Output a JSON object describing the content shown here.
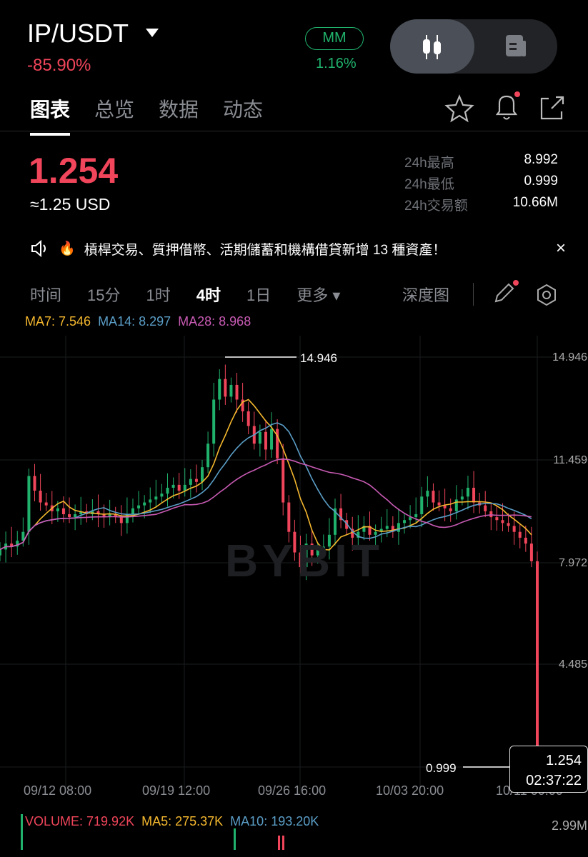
{
  "header": {
    "pair": "IP/USDT",
    "change": "-85.90%",
    "mm_label": "MM",
    "mm_value": "1.16%"
  },
  "tabs": [
    {
      "label": "图表",
      "active": true
    },
    {
      "label": "总览"
    },
    {
      "label": "数据"
    },
    {
      "label": "动态"
    }
  ],
  "ticker": {
    "price": "1.254",
    "usd": "≈1.25 USD",
    "stats": [
      {
        "k": "24h最高",
        "v": "8.992"
      },
      {
        "k": "24h最低",
        "v": "0.999"
      },
      {
        "k": "24h交易额",
        "v": "10.66M"
      }
    ]
  },
  "notice": {
    "text": "槓桿交易、質押借幣、活期儲蓄和機構借貸新增 13 種資產！",
    "close": "×"
  },
  "timeframes": [
    {
      "label": "时间"
    },
    {
      "label": "15分"
    },
    {
      "label": "1时"
    },
    {
      "label": "4时",
      "active": true
    },
    {
      "label": "1日"
    },
    {
      "label": "更多 ▾"
    }
  ],
  "depth": "深度图",
  "ma_legend": {
    "ma7": "MA7: 7.546",
    "ma14": "MA14: 8.297",
    "ma28": "MA28: 8.968"
  },
  "colors": {
    "up": "#20b26c",
    "down": "#f0455a",
    "ma7": "#f5b82e",
    "ma14": "#5b9ec7",
    "ma28": "#c95bb5"
  },
  "watermark": "BYBIT",
  "chart_data": {
    "type": "candlestick",
    "y_ticks": [
      "14.946",
      "11.459",
      "7.972",
      "4.485"
    ],
    "ylim": [
      0.999,
      14.946
    ],
    "x_ticks": [
      "09/12 08:00",
      "09/19 12:00",
      "09/26 16:00",
      "10/03 20:00",
      "10/11 00:00"
    ],
    "high_label": "14.946",
    "low_label": "0.999",
    "last": {
      "price": "1.254",
      "countdown": "02:37:22"
    },
    "closes": [
      8.4,
      8.6,
      8.5,
      8.7,
      9.0,
      10.9,
      10.4,
      10.0,
      9.9,
      9.7,
      9.8,
      9.6,
      9.5,
      9.6,
      9.7,
      9.6,
      9.7,
      9.6,
      9.5,
      9.6,
      9.5,
      9.3,
      9.6,
      9.8,
      9.9,
      10.0,
      10.1,
      10.2,
      10.3,
      10.5,
      10.6,
      10.4,
      10.6,
      10.8,
      10.7,
      11.2,
      12.0,
      13.5,
      14.2,
      13.6,
      14.0,
      13.5,
      13.1,
      12.6,
      12.0,
      12.4,
      11.8,
      12.5,
      11.5,
      10.0,
      9.0,
      8.3,
      7.8,
      8.6,
      8.2,
      8.4,
      8.5,
      8.9,
      9.8,
      9.4,
      9.1,
      8.8,
      9.0,
      9.2,
      8.9,
      9.0,
      9.1,
      9.2,
      9.0,
      9.3,
      9.4,
      9.5,
      9.6,
      10.2,
      10.4,
      10.0,
      9.9,
      9.8,
      9.7,
      10.1,
      10.2,
      10.5,
      10.0,
      9.9,
      9.7,
      9.5,
      9.4,
      9.3,
      9.2,
      9.0,
      8.8,
      8.6,
      8.0,
      1.254
    ]
  },
  "volume": {
    "label": "VOLUME: 719.92K",
    "ma5": "MA5: 275.37K",
    "ma10": "MA10: 193.20K",
    "tick": "2.99M"
  }
}
